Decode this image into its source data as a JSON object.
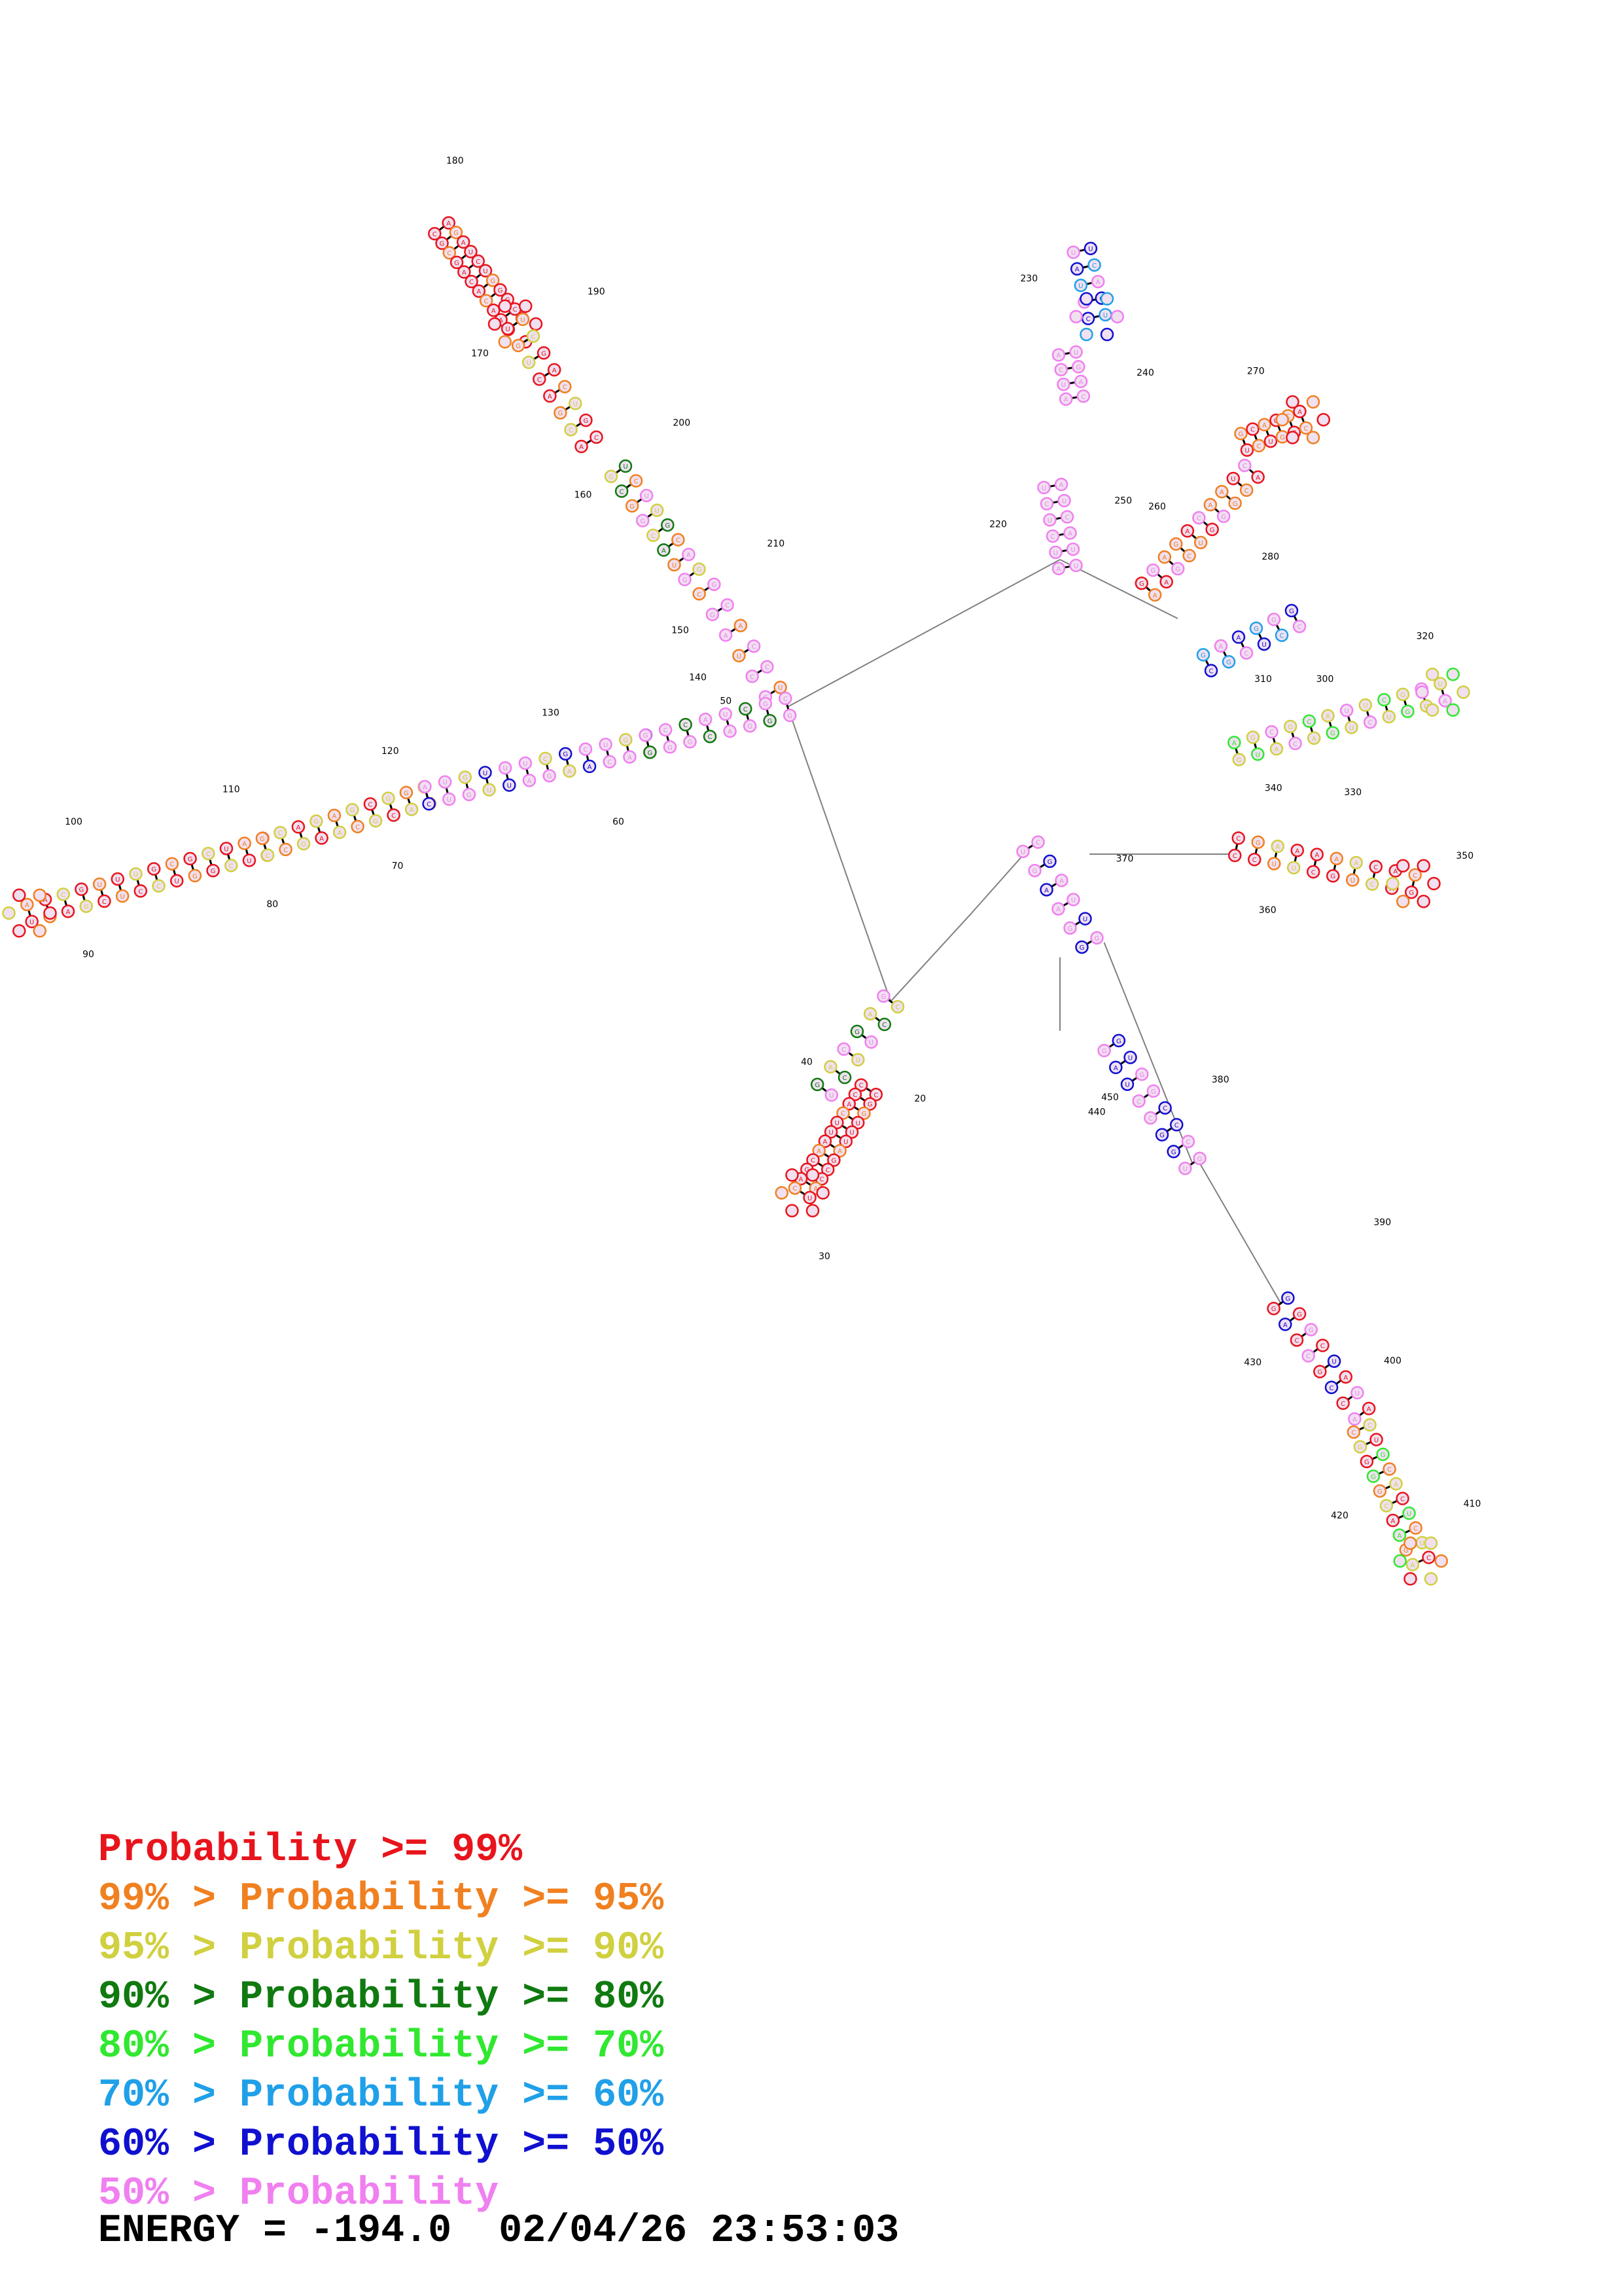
{
  "diagram": {
    "description_type": "rna-secondary-structure",
    "backbone_color": "#808080",
    "pair_color": "#000000",
    "nucleotide_fill": "#f0e0f0",
    "position_labels": [
      "20",
      "30",
      "40",
      "50",
      "60",
      "70",
      "80",
      "90",
      "100",
      "110",
      "120",
      "130",
      "140",
      "150",
      "160",
      "170",
      "180",
      "190",
      "200",
      "210",
      "220",
      "230",
      "240",
      "250",
      "260",
      "270",
      "280",
      "300",
      "310",
      "320",
      "330",
      "340",
      "350",
      "360",
      "370",
      "380",
      "390",
      "400",
      "410",
      "420",
      "430",
      "440",
      "450"
    ]
  },
  "legend": {
    "rows": [
      {
        "prefix": "",
        "text": "Probability >= 99%",
        "color": "#e8141c"
      },
      {
        "prefix": "99% > ",
        "text": "Probability >= 95%",
        "color": "#f08020"
      },
      {
        "prefix": "95% > ",
        "text": "Probability >= 90%",
        "color": "#d0d040"
      },
      {
        "prefix": "90% > ",
        "text": "Probability >= 80%",
        "color": "#107a10"
      },
      {
        "prefix": "80% > ",
        "text": "Probability >= 70%",
        "color": "#30e830"
      },
      {
        "prefix": "70% > ",
        "text": "Probability >= 60%",
        "color": "#20a0e8"
      },
      {
        "prefix": "60% > ",
        "text": "Probability >= 50%",
        "color": "#1010d0"
      },
      {
        "prefix": "50% > ",
        "text": "Probability",
        "color": "#f080f0"
      }
    ]
  },
  "footer": {
    "energy_label": "ENERGY = ",
    "energy_value": "-194.0",
    "timestamp": "02/04/26 23:53:03"
  }
}
